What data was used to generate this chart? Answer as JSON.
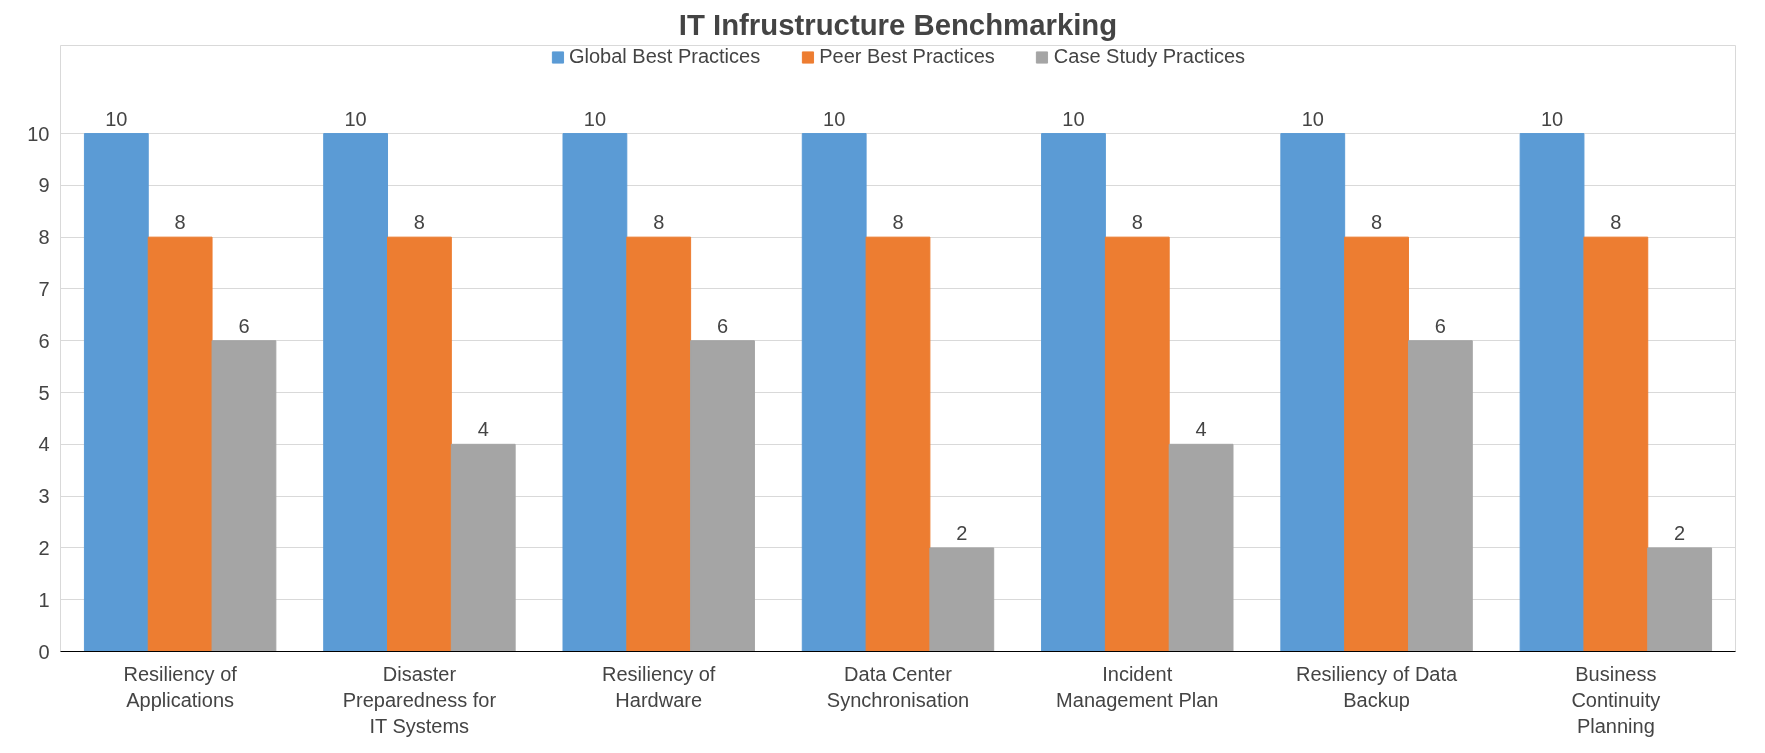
{
  "chart_data": {
    "type": "bar",
    "title": "IT Infrustructure Benchmarking",
    "categories": [
      "Resiliency of Applications",
      "Disaster Preparedness for IT Systems",
      "Resiliency of Hardware",
      "Data Center Synchronisation",
      "Incident Management Plan",
      "Resiliency of Data Backup",
      "Business Continuity Planning"
    ],
    "series": [
      {
        "name": "Global Best Practices",
        "color": "#5b9bd5",
        "values": [
          10,
          10,
          10,
          10,
          10,
          10,
          10
        ]
      },
      {
        "name": "Peer Best Practices",
        "color": "#ed7d31",
        "values": [
          8,
          8,
          8,
          8,
          8,
          8,
          8
        ]
      },
      {
        "name": "Case Study Practices",
        "color": "#a5a5a5",
        "values": [
          6,
          4,
          6,
          2,
          4,
          6,
          2
        ]
      }
    ],
    "ylim": [
      0,
      11.7
    ],
    "yticks": [
      0,
      1,
      2,
      3,
      4,
      5,
      6,
      7,
      8,
      9,
      10
    ],
    "grid": "y",
    "legend": "top",
    "data_labels": true
  }
}
